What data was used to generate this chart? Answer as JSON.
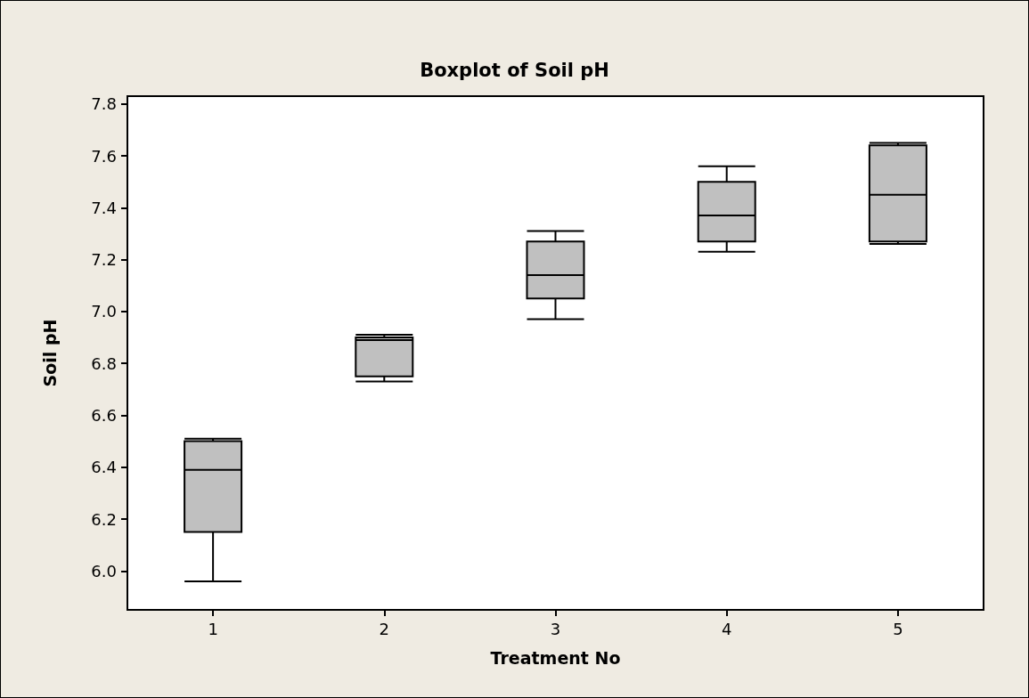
{
  "chart_data": {
    "type": "box",
    "title": "Boxplot of Soil pH",
    "xlabel": "Treatment No",
    "ylabel": "Soil pH",
    "categories": [
      "1",
      "2",
      "3",
      "4",
      "5"
    ],
    "series": [
      {
        "color": "#c0c0c0",
        "boxes": [
          {
            "low": 5.96,
            "q1": 6.15,
            "median": 6.39,
            "q3": 6.5,
            "high": 6.51
          },
          {
            "low": 6.73,
            "q1": 6.75,
            "median": 6.89,
            "q3": 6.9,
            "high": 6.91
          },
          {
            "low": 6.97,
            "q1": 7.05,
            "median": 7.14,
            "q3": 7.27,
            "high": 7.31
          },
          {
            "low": 7.23,
            "q1": 7.27,
            "median": 7.37,
            "q3": 7.5,
            "high": 7.56
          },
          {
            "low": 7.26,
            "q1": 7.27,
            "median": 7.45,
            "q3": 7.64,
            "high": 7.65
          }
        ]
      }
    ],
    "ylim": [
      5.85,
      7.83
    ],
    "yticks": [
      {
        "value": 6,
        "label": "6.0"
      },
      {
        "value": 6.2,
        "label": "6.2"
      },
      {
        "value": 6.4,
        "label": "6.4"
      },
      {
        "value": 6.6,
        "label": "6.6"
      },
      {
        "value": 6.8,
        "label": "6.8"
      },
      {
        "value": 7,
        "label": "7.0"
      },
      {
        "value": 7.2,
        "label": "7.2"
      },
      {
        "value": 7.4,
        "label": "7.4"
      },
      {
        "value": 7.6,
        "label": "7.6"
      },
      {
        "value": 7.8,
        "label": "7.8"
      }
    ],
    "grid": false
  }
}
